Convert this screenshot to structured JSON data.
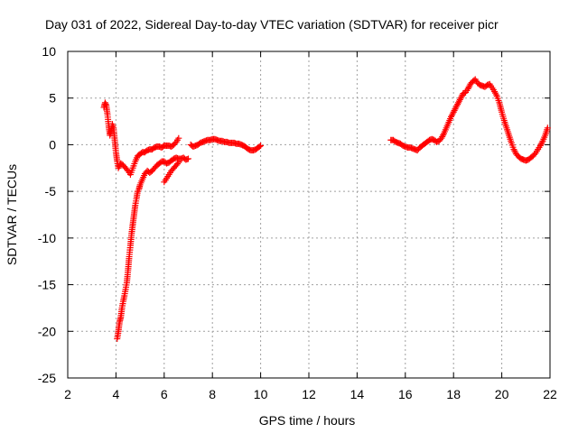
{
  "chart_data": {
    "type": "scatter",
    "title": "Day 031 of 2022, Sidereal Day-to-day VTEC variation (SDTVAR) for receiver picr",
    "xlabel": "GPS time / hours",
    "ylabel": "SDTVAR / TECUs",
    "xlim": [
      2,
      22
    ],
    "ylim": [
      -25,
      10
    ],
    "xticks": [
      2,
      4,
      6,
      8,
      10,
      12,
      14,
      16,
      18,
      20,
      22
    ],
    "yticks": [
      -25,
      -20,
      -15,
      -10,
      -5,
      0,
      5,
      10
    ],
    "grid": true,
    "marker": "+",
    "color": "#ff0000",
    "segments": [
      {
        "name": "early-upper",
        "x": [
          3.5,
          3.55,
          3.6,
          3.65,
          3.7,
          3.75,
          3.8,
          3.85,
          3.9,
          3.95,
          4.0,
          4.05,
          4.1,
          4.2,
          4.3,
          4.4,
          4.5,
          4.6,
          4.7,
          4.8,
          4.9,
          5.0,
          5.1,
          5.2,
          5.3,
          5.4,
          5.5,
          5.6,
          5.7,
          5.8,
          5.9,
          6.0,
          6.1,
          6.2,
          6.3,
          6.4,
          6.5,
          6.6
        ],
        "y": [
          4,
          4.5,
          4.2,
          3.2,
          2.0,
          1.0,
          1.5,
          2.2,
          1.8,
          0.5,
          -0.8,
          -1.8,
          -2.5,
          -2.0,
          -2.2,
          -2.5,
          -2.8,
          -3.2,
          -2.5,
          -1.8,
          -1.2,
          -1.0,
          -0.8,
          -0.8,
          -0.6,
          -0.5,
          -0.5,
          -0.3,
          -0.2,
          -0.2,
          -0.3,
          -0.1,
          -0.1,
          -0.1,
          -0.2,
          0.0,
          0.3,
          0.7
        ]
      },
      {
        "name": "early-lower",
        "x": [
          4.05,
          4.1,
          4.15,
          4.2,
          4.25,
          4.3,
          4.35,
          4.4,
          4.45,
          4.5,
          4.55,
          4.6,
          4.65,
          4.7,
          4.75,
          4.8,
          4.85,
          4.9,
          4.95,
          5.0,
          5.1,
          5.2,
          5.3,
          5.4,
          5.5,
          5.6,
          5.7,
          5.8,
          5.9,
          6.0,
          6.1,
          6.2,
          6.3,
          6.4,
          6.5,
          6.6,
          6.7,
          6.8,
          6.9,
          7.0
        ],
        "y": [
          -20.8,
          -20.0,
          -19.0,
          -18.5,
          -17.5,
          -16.8,
          -16.2,
          -15.5,
          -14.8,
          -13.5,
          -12.0,
          -10.8,
          -9.5,
          -8.5,
          -7.5,
          -6.5,
          -5.8,
          -5.0,
          -4.8,
          -4.3,
          -3.7,
          -3.1,
          -2.8,
          -3.0,
          -2.8,
          -2.5,
          -2.2,
          -2.0,
          -1.8,
          -1.8,
          -2.0,
          -1.9,
          -1.7,
          -1.5,
          -1.4,
          -1.5,
          -1.5,
          -1.4,
          -1.6,
          -1.5
        ]
      },
      {
        "name": "early-branch",
        "x": [
          6.0,
          6.1,
          6.2,
          6.3,
          6.4,
          6.5,
          6.6
        ],
        "y": [
          -4.0,
          -3.6,
          -3.2,
          -2.8,
          -2.5,
          -2.2,
          -1.9
        ]
      },
      {
        "name": "mid",
        "x": [
          7.1,
          7.2,
          7.3,
          7.4,
          7.5,
          7.6,
          7.7,
          7.8,
          7.9,
          8.0,
          8.1,
          8.2,
          8.3,
          8.4,
          8.5,
          8.6,
          8.7,
          8.8,
          8.9,
          9.0,
          9.1,
          9.2,
          9.3,
          9.4,
          9.5,
          9.6,
          9.7,
          9.8,
          9.9,
          10.0
        ],
        "y": [
          0.0,
          -0.2,
          -0.1,
          0.0,
          0.2,
          0.3,
          0.4,
          0.5,
          0.5,
          0.6,
          0.6,
          0.5,
          0.4,
          0.4,
          0.3,
          0.3,
          0.2,
          0.2,
          0.2,
          0.1,
          0.1,
          0.0,
          -0.1,
          -0.3,
          -0.5,
          -0.6,
          -0.6,
          -0.5,
          -0.3,
          -0.1
        ]
      },
      {
        "name": "late",
        "x": [
          15.4,
          15.5,
          15.6,
          15.7,
          15.8,
          15.9,
          16.0,
          16.1,
          16.2,
          16.3,
          16.4,
          16.5,
          16.6,
          16.7,
          16.8,
          16.9,
          17.0,
          17.1,
          17.2,
          17.3,
          17.4,
          17.5,
          17.6,
          17.7,
          17.8,
          17.9,
          18.0,
          18.1,
          18.2,
          18.3,
          18.4,
          18.5,
          18.6,
          18.7,
          18.8,
          18.9,
          19.0,
          19.1,
          19.2,
          19.3,
          19.4,
          19.5,
          19.6,
          19.7,
          19.8,
          19.9,
          20.0,
          20.1,
          20.2,
          20.3,
          20.4,
          20.5,
          20.6,
          20.7,
          20.8,
          20.9,
          21.0,
          21.1,
          21.2,
          21.3,
          21.4,
          21.5,
          21.6,
          21.7,
          21.8,
          21.9
        ],
        "y": [
          0.5,
          0.5,
          0.3,
          0.2,
          0.1,
          -0.1,
          -0.2,
          -0.3,
          -0.3,
          -0.4,
          -0.5,
          -0.6,
          -0.3,
          -0.1,
          0.1,
          0.3,
          0.5,
          0.6,
          0.5,
          0.3,
          0.4,
          0.7,
          1.2,
          1.8,
          2.4,
          3.0,
          3.5,
          4.0,
          4.5,
          5.0,
          5.5,
          5.6,
          6.0,
          6.5,
          6.8,
          7.0,
          6.6,
          6.4,
          6.3,
          6.2,
          6.4,
          6.5,
          6.1,
          5.7,
          5.2,
          4.5,
          3.5,
          2.6,
          1.8,
          1.0,
          0.2,
          -0.5,
          -1.0,
          -1.3,
          -1.5,
          -1.6,
          -1.7,
          -1.6,
          -1.4,
          -1.2,
          -0.9,
          -0.5,
          -0.1,
          0.4,
          1.0,
          1.8
        ]
      }
    ]
  }
}
